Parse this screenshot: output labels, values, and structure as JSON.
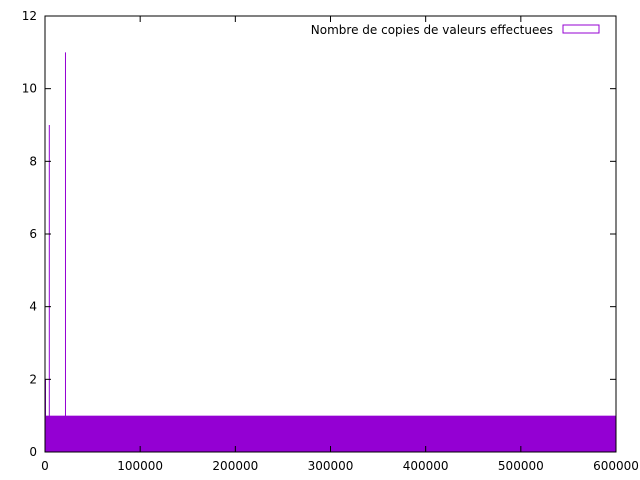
{
  "chart_data": {
    "type": "bar",
    "title": "",
    "xlabel": "",
    "ylabel": "",
    "xlim": [
      0,
      600000
    ],
    "ylim": [
      0,
      12
    ],
    "x_ticks": [
      "0",
      "100000",
      "200000",
      "300000",
      "400000",
      "500000",
      "600000"
    ],
    "y_ticks": [
      "0",
      "2",
      "4",
      "6",
      "8",
      "10",
      "12"
    ],
    "grid": false,
    "legend_position": "top-right",
    "series": [
      {
        "name": "Nombre de copies de valeurs effectuees",
        "color": "#9400D3",
        "baseline_value": 1,
        "baseline_x_range": [
          0,
          600000
        ],
        "spikes": [
          {
            "x": 0,
            "y": 2
          },
          {
            "x": 4000,
            "y": 9
          },
          {
            "x": 21000,
            "y": 11
          }
        ]
      }
    ]
  }
}
